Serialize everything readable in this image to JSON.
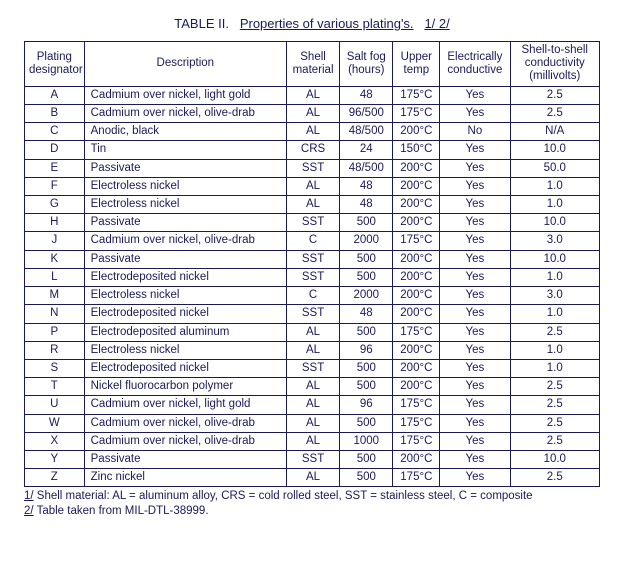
{
  "title": {
    "label": "TABLE II.",
    "caption": "Properties of various plating's.",
    "refs": "1/ 2/"
  },
  "columns": [
    "Plating designator",
    "Description",
    "Shell material",
    "Salt fog (hours)",
    "Upper temp",
    "Electrically conductive",
    "Shell-to-shell conductivity (millivolts)"
  ],
  "rows": [
    {
      "des": "A",
      "desc": "Cadmium over nickel, light gold",
      "shell": "AL",
      "fog": "48",
      "temp": "175°C",
      "cond": "Yes",
      "mv": "2.5"
    },
    {
      "des": "B",
      "desc": "Cadmium over nickel, olive-drab",
      "shell": "AL",
      "fog": "96/500",
      "temp": "175°C",
      "cond": "Yes",
      "mv": "2.5"
    },
    {
      "des": "C",
      "desc": "Anodic, black",
      "shell": "AL",
      "fog": "48/500",
      "temp": "200°C",
      "cond": "No",
      "mv": "N/A"
    },
    {
      "des": "D",
      "desc": "Tin",
      "shell": "CRS",
      "fog": "24",
      "temp": "150°C",
      "cond": "Yes",
      "mv": "10.0"
    },
    {
      "des": "E",
      "desc": "Passivate",
      "shell": "SST",
      "fog": "48/500",
      "temp": "200°C",
      "cond": "Yes",
      "mv": "50.0"
    },
    {
      "des": "F",
      "desc": "Electroless nickel",
      "shell": "AL",
      "fog": "48",
      "temp": "200°C",
      "cond": "Yes",
      "mv": "1.0"
    },
    {
      "des": "G",
      "desc": "Electroless nickel",
      "shell": "AL",
      "fog": "48",
      "temp": "200°C",
      "cond": "Yes",
      "mv": "1.0"
    },
    {
      "des": "H",
      "desc": "Passivate",
      "shell": "SST",
      "fog": "500",
      "temp": "200°C",
      "cond": "Yes",
      "mv": "10.0"
    },
    {
      "des": "J",
      "desc": "Cadmium over nickel, olive-drab",
      "shell": "C",
      "fog": "2000",
      "temp": "175°C",
      "cond": "Yes",
      "mv": "3.0"
    },
    {
      "des": "K",
      "desc": "Passivate",
      "shell": "SST",
      "fog": "500",
      "temp": "200°C",
      "cond": "Yes",
      "mv": "10.0"
    },
    {
      "des": "L",
      "desc": "Electrodeposited nickel",
      "shell": "SST",
      "fog": "500",
      "temp": "200°C",
      "cond": "Yes",
      "mv": "1.0"
    },
    {
      "des": "M",
      "desc": "Electroless nickel",
      "shell": "C",
      "fog": "2000",
      "temp": "200°C",
      "cond": "Yes",
      "mv": "3.0"
    },
    {
      "des": "N",
      "desc": "Electrodeposited nickel",
      "shell": "SST",
      "fog": "48",
      "temp": "200°C",
      "cond": "Yes",
      "mv": "1.0"
    },
    {
      "des": "P",
      "desc": "Electrodeposited aluminum",
      "shell": "AL",
      "fog": "500",
      "temp": "175°C",
      "cond": "Yes",
      "mv": "2.5"
    },
    {
      "des": "R",
      "desc": "Electroless nickel",
      "shell": "AL",
      "fog": "96",
      "temp": "200°C",
      "cond": "Yes",
      "mv": "1.0"
    },
    {
      "des": "S",
      "desc": "Electrodeposited nickel",
      "shell": "SST",
      "fog": "500",
      "temp": "200°C",
      "cond": "Yes",
      "mv": "1.0"
    },
    {
      "des": "T",
      "desc": "Nickel fluorocarbon polymer",
      "shell": "AL",
      "fog": "500",
      "temp": "200°C",
      "cond": "Yes",
      "mv": "2.5"
    },
    {
      "des": "U",
      "desc": "Cadmium over nickel, light gold",
      "shell": "AL",
      "fog": "96",
      "temp": "175°C",
      "cond": "Yes",
      "mv": "2.5"
    },
    {
      "des": "W",
      "desc": "Cadmium over nickel, olive-drab",
      "shell": "AL",
      "fog": "500",
      "temp": "175°C",
      "cond": "Yes",
      "mv": "2.5"
    },
    {
      "des": "X",
      "desc": "Cadmium over nickel, olive-drab",
      "shell": "AL",
      "fog": "1000",
      "temp": "175°C",
      "cond": "Yes",
      "mv": "2.5"
    },
    {
      "des": "Y",
      "desc": "Passivate",
      "shell": "SST",
      "fog": "500",
      "temp": "200°C",
      "cond": "Yes",
      "mv": "10.0"
    },
    {
      "des": "Z",
      "desc": "Zinc nickel",
      "shell": "AL",
      "fog": "500",
      "temp": "175°C",
      "cond": "Yes",
      "mv": "2.5"
    }
  ],
  "footnotes": [
    {
      "num": "1/",
      "text": " Shell material:  AL = aluminum alloy, CRS = cold rolled steel, SST = stainless steel, C = composite"
    },
    {
      "num": "2/",
      "text": " Table taken from MIL-DTL-38999."
    }
  ]
}
